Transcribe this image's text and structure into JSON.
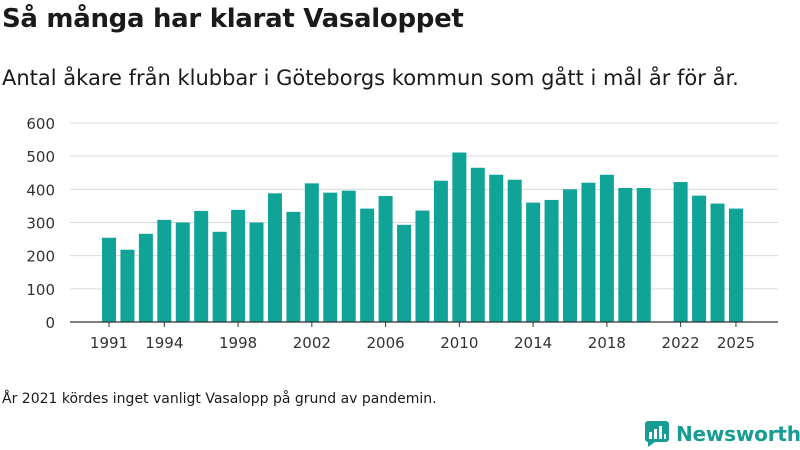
{
  "header": {
    "title": "Så många har klarat Vasaloppet",
    "subtitle": "Antal åkare från klubbar i Göteborgs kommun som gått i mål år för år."
  },
  "footer": {
    "note": "År 2021 kördes inget vanligt Vasalopp på grund av pandemin.",
    "brand_name": "Newsworthy",
    "brand_icon": "newsworthy-logo-icon"
  },
  "colors": {
    "bar": "#10a498",
    "grid": "#d9d9d9",
    "axis": "#333333",
    "brand": "#179c93"
  },
  "chart_data": {
    "type": "bar",
    "title": "Så många har klarat Vasaloppet",
    "subtitle": "Antal åkare från klubbar i Göteborgs kommun som gått i mål år för år.",
    "xlabel": "",
    "ylabel": "",
    "ylim": [
      0,
      600
    ],
    "yticks": [
      0,
      100,
      200,
      300,
      400,
      500,
      600
    ],
    "xticks": [
      "1991",
      "1994",
      "1998",
      "2002",
      "2006",
      "2010",
      "2014",
      "2018",
      "2022",
      "2025"
    ],
    "grid": true,
    "legend": "none",
    "categories": [
      "1991",
      "1992",
      "1993",
      "1994",
      "1995",
      "1996",
      "1997",
      "1998",
      "1999",
      "2000",
      "2001",
      "2002",
      "2003",
      "2004",
      "2005",
      "2006",
      "2007",
      "2008",
      "2009",
      "2010",
      "2011",
      "2012",
      "2013",
      "2014",
      "2015",
      "2016",
      "2017",
      "2018",
      "2019",
      "2020",
      "2021",
      "2022",
      "2023",
      "2024",
      "2025"
    ],
    "values": [
      254,
      218,
      266,
      308,
      300,
      335,
      272,
      338,
      300,
      388,
      332,
      418,
      390,
      396,
      342,
      380,
      293,
      336,
      426,
      511,
      465,
      444,
      429,
      360,
      368,
      400,
      420,
      444,
      404,
      404,
      null,
      422,
      381,
      357,
      342
    ]
  }
}
